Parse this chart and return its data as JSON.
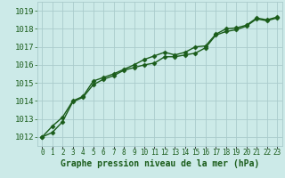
{
  "title": "Graphe pression niveau de la mer (hPa)",
  "background_color": "#cceae8",
  "grid_color": "#aacccc",
  "line_color": "#1a5c1a",
  "x_labels": [
    "0",
    "1",
    "2",
    "3",
    "4",
    "5",
    "6",
    "7",
    "8",
    "9",
    "10",
    "11",
    "12",
    "13",
    "14",
    "15",
    "16",
    "17",
    "18",
    "19",
    "20",
    "21",
    "22",
    "23"
  ],
  "ylim": [
    1011.5,
    1019.5
  ],
  "yticks": [
    1012,
    1013,
    1014,
    1015,
    1016,
    1017,
    1018,
    1019
  ],
  "series1": [
    1012.0,
    1012.6,
    1013.1,
    1014.0,
    1014.25,
    1015.1,
    1015.3,
    1015.5,
    1015.75,
    1016.0,
    1016.3,
    1016.5,
    1016.7,
    1016.55,
    1016.7,
    1017.0,
    1017.05,
    1017.7,
    1018.0,
    1018.05,
    1018.2,
    1018.6,
    1018.5,
    1018.65
  ],
  "series2": [
    1012.0,
    1012.25,
    1012.85,
    1013.95,
    1014.2,
    1014.9,
    1015.2,
    1015.4,
    1015.7,
    1015.85,
    1016.0,
    1016.1,
    1016.45,
    1016.45,
    1016.55,
    1016.65,
    1016.95,
    1017.65,
    1017.85,
    1017.95,
    1018.15,
    1018.55,
    1018.45,
    1018.6
  ],
  "marker": "D",
  "marker_size": 2.5,
  "linewidth": 1.0,
  "xlabel_fontsize": 5.5,
  "ylabel_fontsize": 6.5,
  "title_fontsize": 7.0
}
